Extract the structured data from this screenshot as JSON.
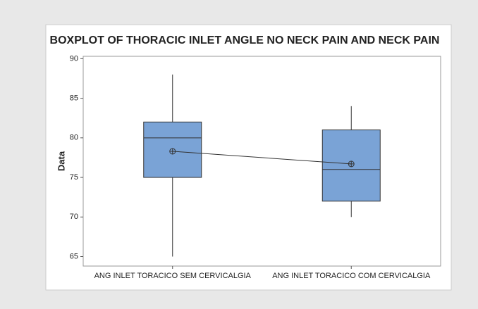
{
  "chart_data": {
    "type": "boxplot",
    "title": "BOXPLOT OF THORACIC INLET ANGLE NO NECK PAIN AND NECK PAIN",
    "y_label": "Data",
    "categories": [
      "ANG INLET TORACICO SEM CERVICALGIA",
      "ANG INLET TORACICO COM CERVICALGIA"
    ],
    "boxes": [
      {
        "min": 65,
        "q1": 75,
        "median": 80,
        "q3": 82,
        "max": 88,
        "mean": 78.3
      },
      {
        "min": 70,
        "q1": 72,
        "median": 76,
        "q3": 81,
        "max": 84,
        "mean": 76.7
      }
    ],
    "color": "#7aa3d6",
    "ylim": [
      63.8,
      90.3
    ],
    "yticks": [
      65,
      70,
      75,
      80,
      85,
      90
    ]
  }
}
